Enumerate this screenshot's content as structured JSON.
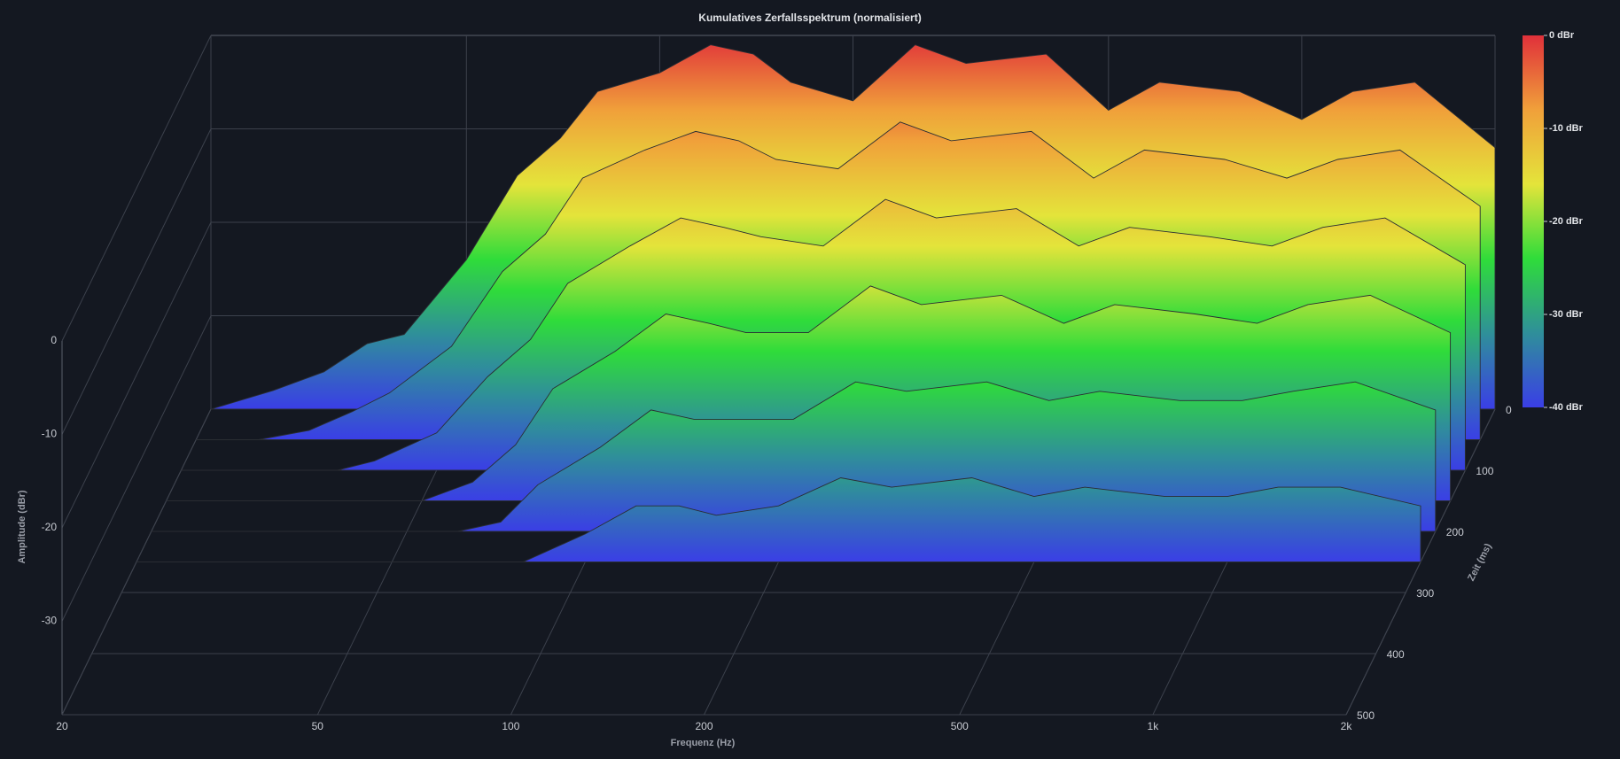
{
  "chart_data": {
    "type": "waterfall",
    "title": "Kumulatives Zerfallsspektrum (normalisiert)",
    "x_label": "Frequenz (Hz)",
    "y_label": "Amplitude (dBr)",
    "time_label": "Zeit (ms)",
    "x_log": true,
    "xlim": [
      20,
      2000
    ],
    "xticks": [
      20,
      50,
      100,
      200,
      500,
      {
        "value": 1000,
        "label": "1k"
      },
      {
        "value": 2000,
        "label": "2k"
      }
    ],
    "ylim": [
      -40,
      0
    ],
    "yticks": [
      0,
      -10,
      -20,
      -30
    ],
    "time_lim": [
      0,
      500
    ],
    "time_ticks": [
      0,
      100,
      200,
      300,
      400,
      500
    ],
    "colors": [
      "#3a3ee6",
      "#2f8f9a",
      "#2fdc3a",
      "#e4e43a",
      "#f0a03a",
      "#e0303a"
    ],
    "colorbar": {
      "lim": [
        -40,
        0
      ],
      "ticks": [
        {
          "value": 0,
          "label": "0 dBr"
        },
        {
          "value": -10,
          "label": "-10 dBr"
        },
        {
          "value": -20,
          "label": "-20 dBr"
        },
        {
          "value": -30,
          "label": "-30 dBr"
        },
        {
          "value": -40,
          "label": "-40 dBr"
        }
      ]
    },
    "x": [
      20,
      25,
      30,
      35,
      40,
      50,
      60,
      70,
      80,
      100,
      120,
      140,
      160,
      200,
      250,
      300,
      400,
      500,
      600,
      800,
      1000,
      1200,
      1500,
      2000
    ],
    "series": [
      {
        "time": 0,
        "values": [
          -40,
          -38,
          -36,
          -33,
          -32,
          -24,
          -15,
          -11,
          -6,
          -4,
          -1,
          -2,
          -5,
          -7,
          -1,
          -3,
          -2,
          -8,
          -5,
          -6,
          -9,
          -6,
          -5,
          -12
        ]
      },
      {
        "time": 50,
        "values": [
          -40,
          -40,
          -39,
          -37,
          -35,
          -30,
          -22,
          -18,
          -12,
          -9,
          -7,
          -8,
          -10,
          -11,
          -6,
          -8,
          -7,
          -12,
          -9,
          -10,
          -12,
          -10,
          -9,
          -15
        ]
      },
      {
        "time": 100,
        "values": [
          -40,
          -40,
          -40,
          -40,
          -39,
          -36,
          -30,
          -26,
          -20,
          -16,
          -13,
          -14,
          -15,
          -16,
          -11,
          -13,
          -12,
          -16,
          -14,
          -15,
          -16,
          -14,
          -13,
          -18
        ]
      },
      {
        "time": 150,
        "values": [
          -40,
          -40,
          -40,
          -40,
          -40,
          -40,
          -38,
          -34,
          -28,
          -24,
          -20,
          -21,
          -22,
          -22,
          -17,
          -19,
          -18,
          -21,
          -19,
          -20,
          -21,
          -19,
          -18,
          -22
        ]
      },
      {
        "time": 200,
        "values": [
          -40,
          -40,
          -40,
          -40,
          -40,
          -40,
          -40,
          -39,
          -35,
          -31,
          -27,
          -28,
          -28,
          -28,
          -24,
          -25,
          -24,
          -26,
          -25,
          -26,
          -26,
          -25,
          -24,
          -27
        ]
      },
      {
        "time": 250,
        "values": [
          -40,
          -40,
          -40,
          -40,
          -40,
          -40,
          -40,
          -40,
          -40,
          -37,
          -34,
          -34,
          -35,
          -34,
          -31,
          -32,
          -31,
          -33,
          -32,
          -33,
          -33,
          -32,
          -32,
          -34
        ]
      }
    ]
  }
}
